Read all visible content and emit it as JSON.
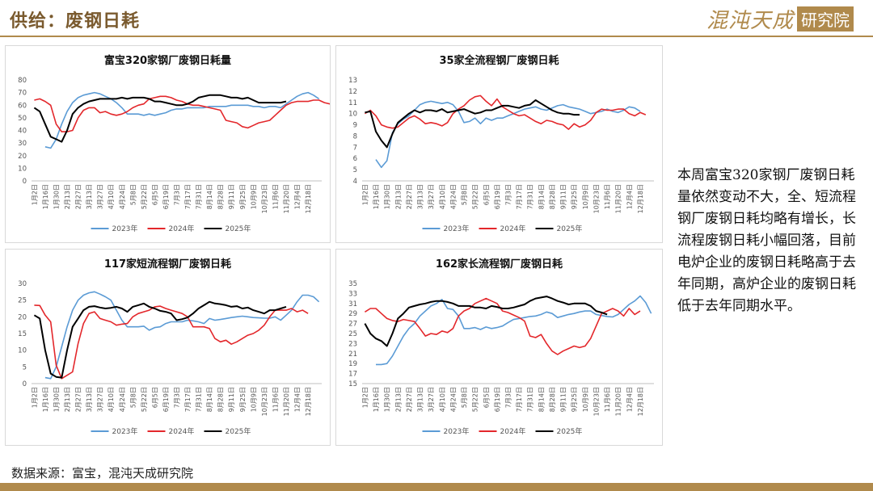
{
  "header": {
    "title": "供给：废钢日耗",
    "brand_main": "混沌天成",
    "brand_box": "研究院"
  },
  "source": "数据来源：富宝，混沌天成研究院",
  "side_text": "本周富宝320家钢厂废钢日耗量依然变动不大，全、短流程钢厂废钢日耗均略有增长，长流程废钢日耗小幅回落，目前电炉企业的废钢日耗略高于去年同期，高炉企业的废钢日耗低于去年同期水平。",
  "colors": {
    "2023年": "#5b9bd5",
    "2024年": "#e3272b",
    "2025年": "#000000"
  },
  "chart_data": [
    {
      "type": "line",
      "title": "富宝320家钢厂废钢日耗量",
      "ylim": [
        0,
        80
      ],
      "yticks": [
        0,
        10,
        20,
        30,
        40,
        50,
        60,
        70,
        80
      ],
      "xticks": [
        "1月2日",
        "1月16日",
        "1月30日",
        "2月13日",
        "2月27日",
        "3月13日",
        "3月27日",
        "4月10日",
        "4月24日",
        "5月8日",
        "5月22日",
        "6月5日",
        "6月19日",
        "7月3日",
        "7月17日",
        "7月31日",
        "8月14日",
        "8月28日",
        "9月11日",
        "9月25日",
        "10月9日",
        "10月23日",
        "11月6日",
        "11月20日",
        "12月4日",
        "12月18日"
      ],
      "legend": "bottom",
      "series": [
        {
          "name": "2023年",
          "start": 2,
          "values": [
            27,
            26,
            33,
            45,
            55,
            62,
            66,
            68,
            69,
            70,
            69,
            67,
            65,
            62,
            58,
            53,
            53,
            53,
            52,
            53,
            52,
            53,
            54,
            56,
            57,
            57,
            58,
            58,
            58,
            58,
            59,
            59,
            59,
            59,
            60,
            60,
            60,
            60,
            59,
            59,
            58,
            59,
            59,
            58,
            61,
            64,
            67,
            69,
            70,
            68,
            65
          ]
        },
        {
          "name": "2024年",
          "start": 0,
          "values": [
            64,
            65,
            63,
            60,
            45,
            39,
            39,
            40,
            50,
            56,
            58,
            58,
            54,
            55,
            53,
            52,
            53,
            55,
            58,
            60,
            61,
            65,
            66,
            67,
            67,
            66,
            64,
            63,
            61,
            60,
            60,
            59,
            58,
            57,
            56,
            48,
            47,
            46,
            43,
            42,
            44,
            46,
            47,
            48,
            52,
            56,
            60,
            62,
            63,
            63,
            63,
            64,
            64,
            62,
            61,
            60,
            62,
            61,
            60
          ]
        },
        {
          "name": "2025年",
          "start": 0,
          "values": [
            58,
            55,
            45,
            35,
            33,
            31,
            40,
            53,
            58,
            61,
            63,
            64,
            65,
            65,
            65,
            65,
            66,
            65,
            66,
            66,
            66,
            65,
            63,
            63,
            62,
            61,
            60,
            60,
            61,
            63,
            66,
            67,
            68,
            68,
            68,
            67,
            66,
            66,
            65,
            66,
            64,
            62,
            62,
            62,
            62,
            62,
            63
          ]
        }
      ]
    },
    {
      "type": "line",
      "title": "35家全流程钢厂废钢日耗",
      "ylim": [
        4,
        13
      ],
      "yticks": [
        4,
        5,
        6,
        7,
        8,
        9,
        10,
        11,
        12,
        13
      ],
      "xticks": [
        "1月2日",
        "1月16日",
        "1月30日",
        "2月13日",
        "2月27日",
        "3月13日",
        "3月27日",
        "4月10日",
        "4月24日",
        "5月8日",
        "5月22日",
        "6月5日",
        "6月19日",
        "7月3日",
        "7月17日",
        "7月31日",
        "8月14日",
        "8月28日",
        "9月11日",
        "9月25日",
        "10月9日",
        "10月23日",
        "11月6日",
        "11月20日",
        "12月4日",
        "12月18日"
      ],
      "legend": "bottom",
      "series": [
        {
          "name": "2023年",
          "start": 2,
          "values": [
            5.9,
            5.2,
            5.8,
            8.3,
            9.1,
            9.5,
            9.8,
            10.3,
            10.8,
            11.0,
            11.1,
            11.0,
            10.9,
            11.0,
            10.8,
            10.2,
            9.2,
            9.3,
            9.6,
            9.1,
            9.6,
            9.4,
            9.6,
            9.6,
            9.8,
            10.0,
            10.2,
            10.4,
            10.5,
            10.6,
            10.4,
            10.3,
            10.5,
            10.7,
            10.8,
            10.6,
            10.5,
            10.4,
            10.2,
            10.0,
            10.1,
            10.2,
            10.4,
            10.2,
            10.1,
            10.3,
            10.6,
            10.5,
            10.2
          ]
        },
        {
          "name": "2024年",
          "start": 0,
          "values": [
            10.0,
            10.3,
            9.8,
            9.0,
            8.8,
            8.7,
            8.8,
            9.2,
            9.6,
            9.8,
            9.5,
            9.1,
            9.2,
            9.1,
            8.9,
            9.2,
            10.0,
            10.4,
            10.7,
            11.2,
            11.5,
            11.6,
            11.1,
            10.7,
            11.3,
            10.6,
            10.3,
            10.0,
            9.8,
            9.9,
            9.6,
            9.3,
            9.1,
            9.4,
            9.3,
            9.1,
            9.0,
            8.6,
            9.1,
            8.8,
            9.0,
            9.4,
            10.1,
            10.4,
            10.3,
            10.3,
            10.4,
            10.4,
            10.0,
            9.8,
            10.1,
            9.9
          ]
        },
        {
          "name": "2025年",
          "start": 0,
          "values": [
            10.1,
            10.2,
            8.4,
            7.6,
            7.0,
            8.2,
            9.2,
            9.6,
            10.0,
            10.3,
            10.1,
            10.3,
            10.3,
            10.2,
            10.4,
            10.1,
            10.2,
            10.3,
            10.4,
            10.2,
            10.0,
            10.1,
            10.3,
            10.3,
            10.5,
            10.7,
            10.7,
            10.6,
            10.5,
            10.7,
            10.8,
            11.2,
            10.9,
            10.6,
            10.3,
            10.1,
            10.0,
            10.0,
            9.9,
            9.9
          ]
        }
      ]
    },
    {
      "type": "line",
      "title": "117家短流程钢厂废钢日耗",
      "ylim": [
        0,
        30
      ],
      "yticks": [
        0,
        5,
        10,
        15,
        20,
        25,
        30
      ],
      "xticks": [
        "1月2日",
        "1月16日",
        "1月30日",
        "2月13日",
        "2月27日",
        "3月13日",
        "3月27日",
        "4月10日",
        "4月24日",
        "5月8日",
        "5月22日",
        "6月5日",
        "6月19日",
        "7月3日",
        "7月17日",
        "7月31日",
        "8月14日",
        "8月28日",
        "9月11日",
        "9月25日",
        "10月9日",
        "10月23日",
        "11月6日",
        "11月20日",
        "12月4日",
        "12月18日"
      ],
      "legend": "bottom",
      "series": [
        {
          "name": "2023年",
          "start": 2,
          "values": [
            1.8,
            1.5,
            5.0,
            11.0,
            17.0,
            22.0,
            25.0,
            26.5,
            27.2,
            27.5,
            26.8,
            26.0,
            25.0,
            22.0,
            19.0,
            17.0,
            17.0,
            17.0,
            17.2,
            16.0,
            16.8,
            17.0,
            18.0,
            18.5,
            18.5,
            18.5,
            19.0,
            18.8,
            18.5,
            18.0,
            19.5,
            19.0,
            19.2,
            19.5,
            19.8,
            20.0,
            20.2,
            20.0,
            19.8,
            19.7,
            19.6,
            19.6,
            20.0,
            19.0,
            20.5,
            22.0,
            24.5,
            26.5,
            26.5,
            26.0,
            24.5
          ]
        },
        {
          "name": "2024年",
          "start": 0,
          "values": [
            23.5,
            23.4,
            20.5,
            18.5,
            5.5,
            1.5,
            2.5,
            3.5,
            12.0,
            18.0,
            21.0,
            21.5,
            19.5,
            19.0,
            18.5,
            17.5,
            17.8,
            18.0,
            20.0,
            21.0,
            21.5,
            22.0,
            23.0,
            23.2,
            22.5,
            22.0,
            21.5,
            21.0,
            20.0,
            17.0,
            17.0,
            17.0,
            16.5,
            13.5,
            12.5,
            13.0,
            11.8,
            12.5,
            13.5,
            14.5,
            15.0,
            16.0,
            17.5,
            20.0,
            22.0,
            22.0,
            22.0,
            22.5,
            21.5,
            22.0,
            21.0
          ]
        },
        {
          "name": "2025年",
          "start": 0,
          "values": [
            20.5,
            19.5,
            10.0,
            3.0,
            2.0,
            1.8,
            10.0,
            17.0,
            19.5,
            22.0,
            23.0,
            23.2,
            22.8,
            22.5,
            22.7,
            23.0,
            22.5,
            21.5,
            23.0,
            23.5,
            24.0,
            23.0,
            22.5,
            21.8,
            21.5,
            21.0,
            19.0,
            19.3,
            19.8,
            21.0,
            22.5,
            23.5,
            24.5,
            24.0,
            23.8,
            23.5,
            23.0,
            23.2,
            22.5,
            22.8,
            22.0,
            21.5,
            21.0,
            22.0,
            22.0,
            22.5,
            23.0
          ]
        }
      ]
    },
    {
      "type": "line",
      "title": "162家长流程钢厂废钢日耗",
      "ylim": [
        15,
        35
      ],
      "yticks": [
        15,
        17,
        19,
        21,
        23,
        25,
        27,
        29,
        31,
        33,
        35
      ],
      "xticks": [
        "1月2日",
        "1月16日",
        "1月30日",
        "2月13日",
        "2月27日",
        "3月13日",
        "3月27日",
        "4月10日",
        "4月24日",
        "5月8日",
        "5月22日",
        "6月5日",
        "6月19日",
        "7月3日",
        "7月17日",
        "7月31日",
        "8月14日",
        "8月28日",
        "9月11日",
        "9月25日",
        "10月9日",
        "10月23日",
        "11月6日",
        "11月20日",
        "12月4日",
        "12月18日"
      ],
      "legend": "bottom",
      "series": [
        {
          "name": "2023年",
          "start": 2,
          "values": [
            18.8,
            18.8,
            19.0,
            20.5,
            22.5,
            24.5,
            26.0,
            27.0,
            28.5,
            29.5,
            30.5,
            31.0,
            31.8,
            30.0,
            29.8,
            28.5,
            26.0,
            26.0,
            26.2,
            25.8,
            26.3,
            26.0,
            26.2,
            26.5,
            27.2,
            27.8,
            28.0,
            28.2,
            28.4,
            28.5,
            28.8,
            29.3,
            29.0,
            28.2,
            28.5,
            28.8,
            29.0,
            29.3,
            29.5,
            29.5,
            28.8,
            28.6,
            28.4,
            28.3,
            28.8,
            29.8,
            30.8,
            31.5,
            32.5,
            31.2,
            29.0
          ]
        },
        {
          "name": "2024年",
          "start": 0,
          "values": [
            29.3,
            30.0,
            30.0,
            29.0,
            28.0,
            27.6,
            27.4,
            27.8,
            27.6,
            27.4,
            26.0,
            24.5,
            25.0,
            24.8,
            25.5,
            25.2,
            26.0,
            28.5,
            29.5,
            30.0,
            31.0,
            31.5,
            32.0,
            31.5,
            31.0,
            29.5,
            29.2,
            28.7,
            28.2,
            27.5,
            24.5,
            24.2,
            24.8,
            23.0,
            21.5,
            20.8,
            21.5,
            22.0,
            22.5,
            22.2,
            22.5,
            24.0,
            26.5,
            29.0,
            29.5,
            30.0,
            29.5,
            28.5,
            30.0,
            28.8,
            29.5
          ]
        },
        {
          "name": "2025年",
          "start": 0,
          "values": [
            27.0,
            25.0,
            24.0,
            23.5,
            22.5,
            25.0,
            28.0,
            29.0,
            30.2,
            30.5,
            30.8,
            31.0,
            31.3,
            31.5,
            31.5,
            31.3,
            31.0,
            30.5,
            30.5,
            30.5,
            30.2,
            30.2,
            30.0,
            30.5,
            30.3,
            30.0,
            30.0,
            30.2,
            30.5,
            30.8,
            31.5,
            32.0,
            32.2,
            32.4,
            32.0,
            31.5,
            31.2,
            30.8,
            31.0,
            31.0,
            31.0,
            30.5,
            29.5,
            29.2,
            28.8
          ]
        }
      ]
    }
  ]
}
